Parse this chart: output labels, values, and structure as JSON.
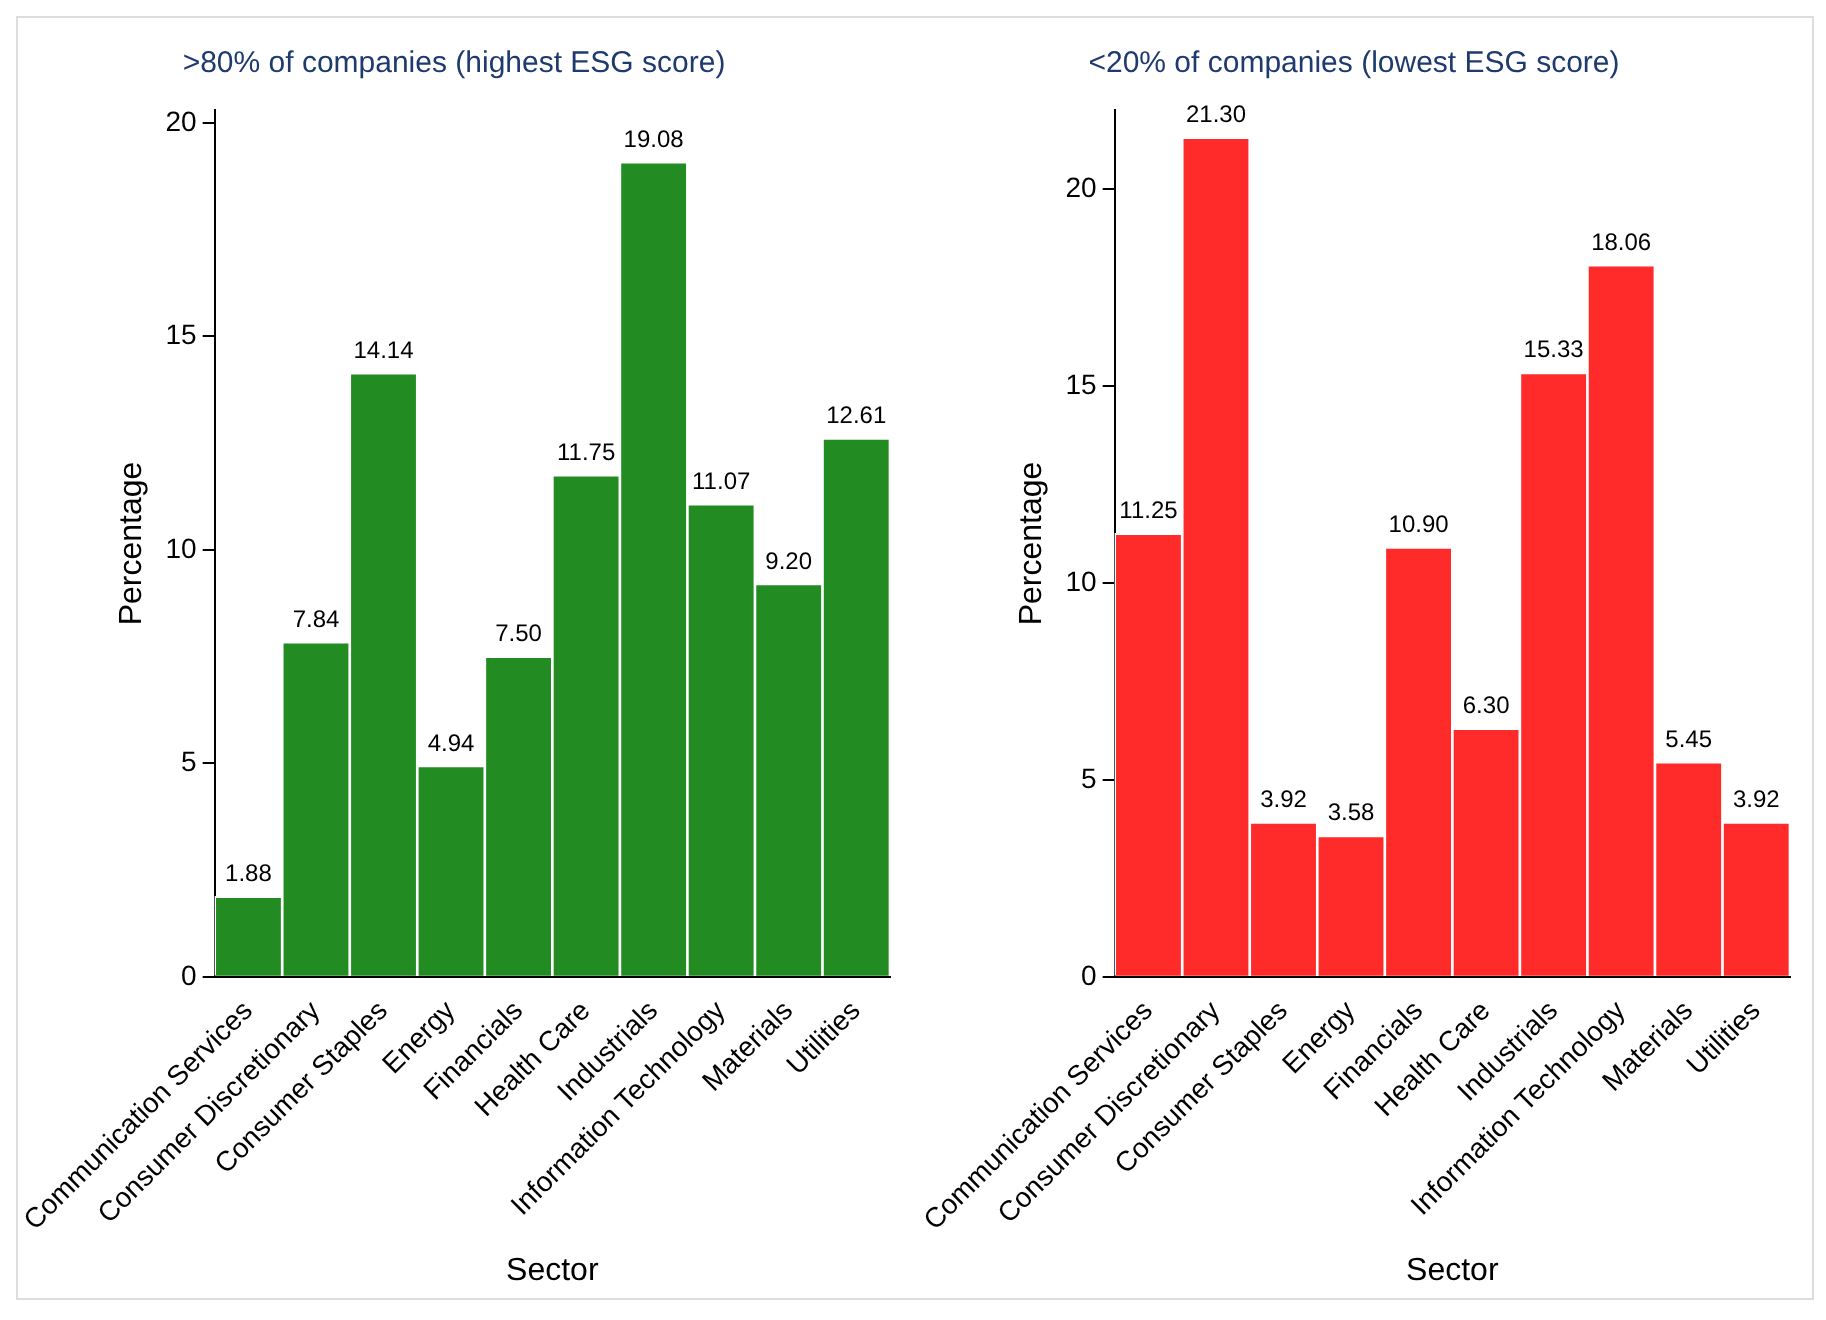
{
  "chart_data": [
    {
      "type": "bar",
      "title": ">80% of companies (highest ESG score)",
      "xlabel": "Sector",
      "ylabel": "Percentage",
      "categories": [
        "Communication Services",
        "Consumer Discretionary",
        "Consumer Staples",
        "Energy",
        "Financials",
        "Health Care",
        "Industrials",
        "Information Technology",
        "Materials",
        "Utilities"
      ],
      "values": [
        1.88,
        7.84,
        14.14,
        4.94,
        7.5,
        11.75,
        19.08,
        11.07,
        9.2,
        12.61
      ],
      "value_labels": [
        "1.88",
        "7.84",
        "14.14",
        "4.94",
        "7.50",
        "11.75",
        "19.08",
        "11.07",
        "9.20",
        "12.61"
      ],
      "color": "#228b22",
      "ylim": [
        0,
        20.3
      ],
      "yticks": [
        0,
        5,
        10,
        15,
        20
      ],
      "grid": false,
      "legend": false
    },
    {
      "type": "bar",
      "title": "<20% of companies (lowest ESG score)",
      "xlabel": "Sector",
      "ylabel": "Percentage",
      "categories": [
        "Communication Services",
        "Consumer Discretionary",
        "Consumer Staples",
        "Energy",
        "Financials",
        "Health Care",
        "Industrials",
        "Information Technology",
        "Materials",
        "Utilities"
      ],
      "values": [
        11.25,
        21.3,
        3.92,
        3.58,
        10.9,
        6.3,
        15.33,
        18.06,
        5.45,
        3.92
      ],
      "value_labels": [
        "11.25",
        "21.30",
        "3.92",
        "3.58",
        "10.90",
        "6.30",
        "15.33",
        "18.06",
        "5.45",
        "3.92"
      ],
      "color": "#ff2a2a",
      "ylim": [
        0,
        22
      ],
      "yticks": [
        0,
        5,
        10,
        15,
        20
      ],
      "grid": false,
      "legend": false
    }
  ]
}
